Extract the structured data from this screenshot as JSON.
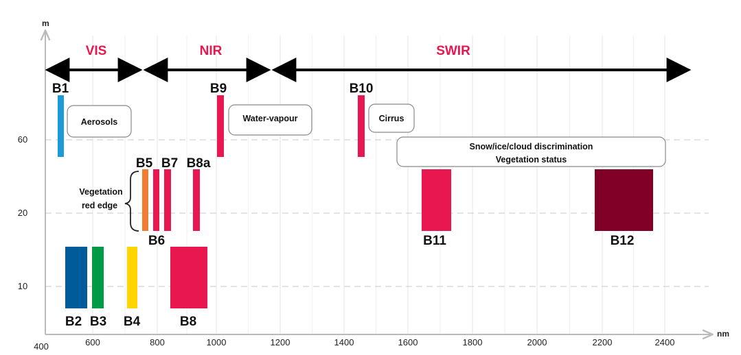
{
  "chart_data": {
    "type": "band-diagram",
    "x_unit": "nm",
    "y_unit": "m",
    "x_ticks": [
      400,
      600,
      800,
      1000,
      1200,
      1400,
      1600,
      1800,
      2000,
      2200,
      2400
    ],
    "y_ticks": [
      {
        "label": "10",
        "value": 10
      },
      {
        "label": "20",
        "value": 20
      },
      {
        "label": "60",
        "value": 60
      }
    ],
    "regions": [
      {
        "name": "VIS",
        "start": 400,
        "end": 750
      },
      {
        "name": "NIR",
        "end": 1190
      },
      {
        "name": "SWIR",
        "end": 2490
      }
    ],
    "bands": [
      {
        "name": "B1",
        "start": 433,
        "end": 453,
        "resolution": 60,
        "color": "#1e9ad6"
      },
      {
        "name": "B2",
        "start": 458,
        "end": 523,
        "resolution": 10,
        "color": "#005b9a"
      },
      {
        "name": "B3",
        "start": 543,
        "end": 578,
        "resolution": 10,
        "color": "#009a44"
      },
      {
        "name": "B4",
        "start": 650,
        "end": 680,
        "resolution": 10,
        "color": "#ffd500"
      },
      {
        "name": "B5",
        "start": 698,
        "end": 713,
        "resolution": 20,
        "color": "#ef7d32"
      },
      {
        "name": "B6",
        "start": 733,
        "end": 748,
        "resolution": 20,
        "color": "#e8174f"
      },
      {
        "name": "B7",
        "start": 773,
        "end": 793,
        "resolution": 20,
        "color": "#e8174f"
      },
      {
        "name": "B8",
        "start": 785,
        "end": 900,
        "resolution": 10,
        "color": "#e8174f"
      },
      {
        "name": "B8a",
        "start": 855,
        "end": 875,
        "resolution": 20,
        "color": "#e8174f"
      },
      {
        "name": "B9",
        "start": 935,
        "end": 955,
        "resolution": 60,
        "color": "#e8174f"
      },
      {
        "name": "B10",
        "start": 1360,
        "end": 1390,
        "resolution": 60,
        "color": "#e8174f"
      },
      {
        "name": "B11",
        "start": 1565,
        "end": 1655,
        "resolution": 20,
        "color": "#e8174f"
      },
      {
        "name": "B12",
        "start": 2100,
        "end": 2280,
        "resolution": 20,
        "color": "#800028"
      }
    ],
    "annotations": [
      {
        "text": "Aerosols",
        "band": "B1"
      },
      {
        "text": "Water-vapour",
        "band": "B9"
      },
      {
        "text": "Cirrus",
        "band": "B10"
      },
      {
        "text": "Snow/ice/cloud discrimination",
        "line2": "Vegetation status",
        "bands": [
          "B11",
          "B12"
        ]
      },
      {
        "text": "Vegetation",
        "line2": "red edge",
        "bands": [
          "B5",
          "B6",
          "B7"
        ]
      }
    ]
  }
}
